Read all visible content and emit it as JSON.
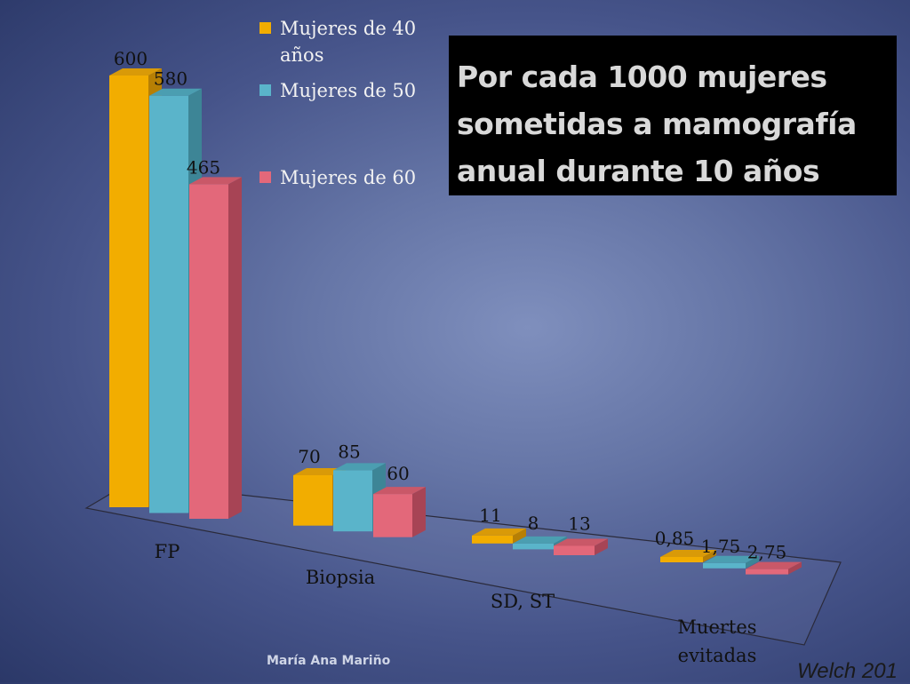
{
  "title": "Por cada 1000 mujeres\nsometidas a mamografía\nanual durante 10 años",
  "author": "María Ana Mariño",
  "credit": "Welch 201",
  "colors": {
    "series": [
      "#f2ad00",
      "#5ab4ca",
      "#e3687a"
    ],
    "side": [
      "#b77f04",
      "#3d8596",
      "#a74455"
    ],
    "top": [
      "#d99a08",
      "#4b9eb1",
      "#c95868"
    ]
  },
  "chart_data": {
    "type": "bar",
    "categories": [
      "FP",
      "Biopsia",
      "SD, ST",
      "Muertes\nevitadas"
    ],
    "series": [
      {
        "name": "Mujeres de 40 años",
        "values": [
          600,
          70,
          11,
          0.85
        ],
        "labels": [
          "600",
          "70",
          "11",
          "0,85"
        ]
      },
      {
        "name": "Mujeres de 50",
        "values": [
          580,
          85,
          8,
          1.75
        ],
        "labels": [
          "580",
          "85",
          "8",
          "1,75"
        ]
      },
      {
        "name": "Mujeres de 60",
        "values": [
          465,
          60,
          13,
          2.75
        ],
        "labels": [
          "465",
          "60",
          "13",
          "2,75"
        ]
      }
    ],
    "legend": "top",
    "grid": false
  }
}
